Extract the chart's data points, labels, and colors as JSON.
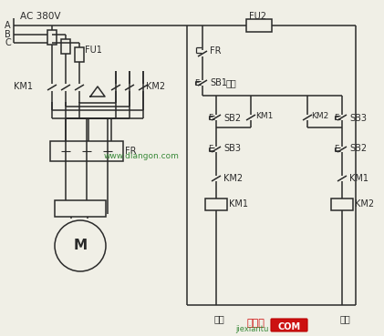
{
  "bg_color": "#f0efe6",
  "lc": "#2a2a2a",
  "fig_w": 4.21,
  "fig_h": 3.69,
  "dpi": 100,
  "watermark": "www.diangon.com",
  "footer_red": "接线图",
  "footer_logo": "COM",
  "footer_green": "jiexiantu",
  "zhengzhuan": "正转",
  "fanzhuan": "反转",
  "stop_note": "停车",
  "AC": "AC 380V",
  "FU2": "FU2",
  "FU1": "FU1",
  "KM1": "KM1",
  "KM2": "KM2",
  "FR": "FR",
  "M": "M",
  "SB1": "SB1",
  "SB2": "SB2",
  "SB3": "SB3",
  "A": "A",
  "B": "B",
  "C": "C",
  "E": "E"
}
